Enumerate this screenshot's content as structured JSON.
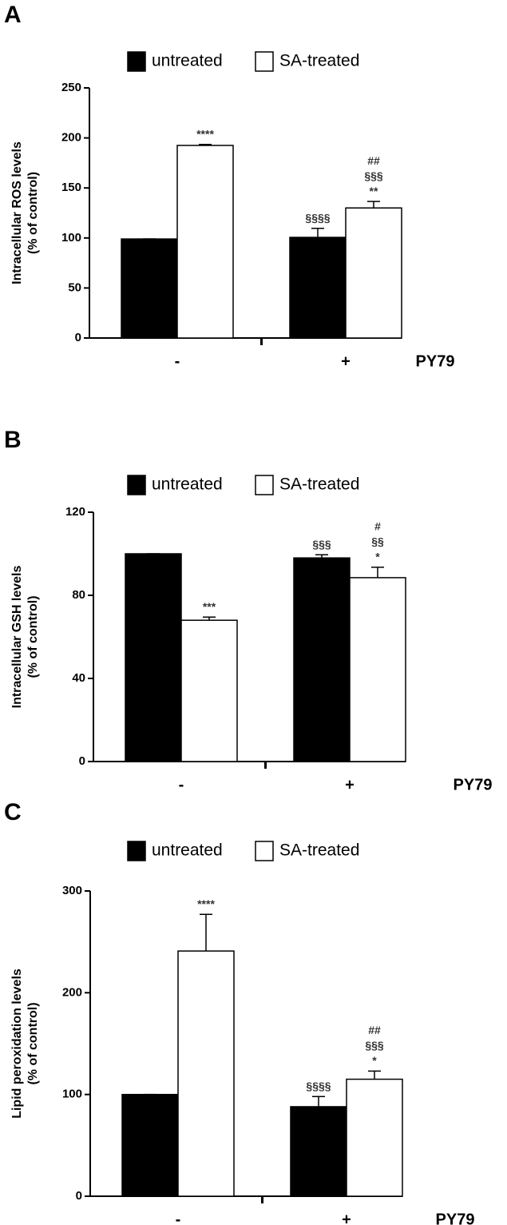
{
  "chart_data": [
    {
      "type": "bar",
      "panel_label": "A",
      "ylabel": [
        "Intracellular ROS levels",
        "(% of control)"
      ],
      "xlabel": "PY79",
      "categories": [
        "-",
        "+"
      ],
      "ylim": [
        0,
        250
      ],
      "yticks": [
        0,
        50,
        100,
        150,
        200,
        250
      ],
      "series": [
        {
          "name": "untreated",
          "color": "#000000",
          "values": [
            99,
            100.6
          ],
          "errors": [
            0,
            9
          ],
          "annotations": [
            [],
            [
              "§§§§"
            ]
          ]
        },
        {
          "name": "SA-treated",
          "color": "#ffffff",
          "values": [
            192.5,
            130
          ],
          "errors": [
            1,
            6.5
          ],
          "annotations": [
            [
              "****"
            ],
            [
              "**",
              "§§§",
              "##"
            ]
          ]
        }
      ]
    },
    {
      "type": "bar",
      "panel_label": "B",
      "ylabel": [
        "Intracellular GSH levels",
        "(% of control)"
      ],
      "xlabel": "PY79",
      "categories": [
        "-",
        "+"
      ],
      "ylim": [
        0,
        120
      ],
      "yticks": [
        0,
        40,
        80,
        120
      ],
      "series": [
        {
          "name": "untreated",
          "color": "#000000",
          "values": [
            100,
            98
          ],
          "errors": [
            0,
            1.5
          ],
          "annotations": [
            [],
            [
              "§§§"
            ]
          ]
        },
        {
          "name": "SA-treated",
          "color": "#ffffff",
          "values": [
            68,
            88.5
          ],
          "errors": [
            1.5,
            5
          ],
          "annotations": [
            [
              "***"
            ],
            [
              "*",
              "§§",
              "#"
            ]
          ]
        }
      ]
    },
    {
      "type": "bar",
      "panel_label": "C",
      "ylabel": [
        "Lipid peroxidation levels",
        "(% of control)"
      ],
      "xlabel": "PY79",
      "categories": [
        "-",
        "+"
      ],
      "ylim": [
        0,
        300
      ],
      "yticks": [
        0,
        100,
        200,
        300
      ],
      "series": [
        {
          "name": "untreated",
          "color": "#000000",
          "values": [
            100,
            88
          ],
          "errors": [
            0,
            10
          ],
          "annotations": [
            [],
            [
              "§§§§"
            ]
          ]
        },
        {
          "name": "SA-treated",
          "color": "#ffffff",
          "values": [
            241,
            115
          ],
          "errors": [
            36,
            8
          ],
          "annotations": [
            [
              "****"
            ],
            [
              "*",
              "§§§",
              "##"
            ]
          ]
        }
      ]
    }
  ]
}
